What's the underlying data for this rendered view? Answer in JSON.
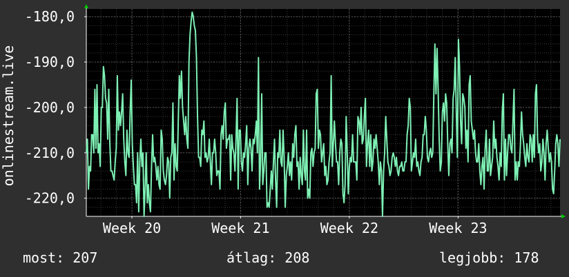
{
  "colors": {
    "background": "#2f2f2f",
    "plot_background": "#000000",
    "grid_minor": "#3a3a3a",
    "grid_major": "#555555",
    "axis": "#ffffff",
    "axis_arrow": "#00cc00",
    "line": "#7ef0b4",
    "text": "#ffffff"
  },
  "chart_data": {
    "type": "line",
    "title": "",
    "ylabel": "onlinestream.live",
    "xlabel": "",
    "ylim": [
      -224,
      -178.3
    ],
    "xlim": [
      0,
      1
    ],
    "y_ticks": [
      -180,
      -190,
      -200,
      -210,
      -220
    ],
    "y_tick_labels": [
      "-180,0",
      "-190,0",
      "-200,0",
      "-210,0",
      "-220,0"
    ],
    "x_ticks": [
      {
        "label": "Week 20",
        "x": 0.0963
      },
      {
        "label": "Week 21",
        "x": 0.3256
      },
      {
        "label": "Week 22",
        "x": 0.5552
      },
      {
        "label": "Week 23",
        "x": 0.7849
      }
    ],
    "grid": true,
    "series": [
      {
        "values": [
          -210,
          -207,
          -218,
          -213,
          -214,
          -206,
          -206,
          -210,
          -196,
          -209,
          -195,
          -210,
          -208,
          -213,
          -200,
          -200,
          -191,
          -193,
          -198,
          -199,
          -207,
          -196,
          -208,
          -214,
          -214,
          -215,
          -216,
          -212,
          -209,
          -193,
          -205,
          -201,
          -204,
          -201,
          -197,
          -207,
          -212,
          -215,
          -205,
          -210,
          -211,
          -201,
          -194,
          -208,
          -213,
          -217,
          -217,
          -221,
          -210,
          -223,
          -212,
          -207,
          -213,
          -210,
          -224,
          -218,
          -210,
          -221,
          -217,
          -221,
          -223,
          -213,
          -206,
          -212,
          -211,
          -213,
          -216,
          -213,
          -217,
          -218,
          -205,
          -207,
          -214,
          -216,
          -217,
          -215,
          -211,
          -212,
          -220,
          -211,
          -210,
          -199,
          -216,
          -208,
          -213,
          -214,
          -203,
          -193,
          -198,
          -192,
          -200,
          -203,
          -206,
          -202,
          -207,
          -209,
          -190,
          -184,
          -181,
          -179,
          -180,
          -182,
          -183,
          -189,
          -202,
          -211,
          -211,
          -213,
          -205,
          -206,
          -203,
          -211,
          -210,
          -212,
          -211,
          -207,
          -212,
          -217,
          -210,
          -210,
          -207,
          -210,
          -215,
          -214,
          -214,
          -218,
          -206,
          -204,
          -207,
          -201,
          -199,
          -209,
          -207,
          -207,
          -206,
          -216,
          -206,
          -209,
          -210,
          -214,
          -207,
          -198,
          -218,
          -205,
          -205,
          -212,
          -214,
          -210,
          -211,
          -208,
          -204,
          -217,
          -209,
          -207,
          -209,
          -214,
          -207,
          -208,
          -206,
          -203,
          -210,
          -189,
          -218,
          -212,
          -197,
          -217,
          -214,
          -210,
          -210,
          -222,
          -221,
          -222,
          -218,
          -214,
          -218,
          -212,
          -207,
          -216,
          -222,
          -210,
          -211,
          -205,
          -212,
          -213,
          -205,
          -211,
          -222,
          -215,
          -213,
          -210,
          -215,
          -212,
          -216,
          -208,
          -211,
          -206,
          -204,
          -213,
          -212,
          -218,
          -211,
          -215,
          -217,
          -205,
          -214,
          -216,
          -205,
          -220,
          -218,
          -220,
          -210,
          -209,
          -213,
          -210,
          -209,
          -197,
          -196,
          -209,
          -205,
          -206,
          -212,
          -210,
          -208,
          -215,
          -213,
          -217,
          -216,
          -212,
          -210,
          -193,
          -213,
          -208,
          -203,
          -208,
          -212,
          -212,
          -217,
          -210,
          -207,
          -208,
          -219,
          -221,
          -217,
          -202,
          -210,
          -219,
          -213,
          -211,
          -212,
          -206,
          -212,
          -212,
          -212,
          -216,
          -202,
          -203,
          -206,
          -200,
          -208,
          -207,
          -202,
          -198,
          -213,
          -208,
          -205,
          -213,
          -206,
          -214,
          -212,
          -207,
          -209,
          -206,
          -209,
          -212,
          -217,
          -212,
          -214,
          -224,
          -214,
          -210,
          -202,
          -207,
          -212,
          -213,
          -215,
          -214,
          -211,
          -210,
          -211,
          -213,
          -211,
          -214,
          -215,
          -213,
          -213,
          -212,
          -214,
          -214,
          -212,
          -212,
          -206,
          -204,
          -198,
          -200,
          -214,
          -212,
          -210,
          -211,
          -207,
          -213,
          -212,
          -214,
          -215,
          -212,
          -211,
          -206,
          -206,
          -202,
          -205,
          -211,
          -212,
          -210,
          -209,
          -211,
          -210,
          -197,
          -186,
          -197,
          -187,
          -196,
          -207,
          -214,
          -212,
          -201,
          -199,
          -203,
          -197,
          -199,
          -208,
          -215,
          -208,
          -207,
          -210,
          -198,
          -196,
          -189,
          -201,
          -211,
          -185,
          -191,
          -203,
          -208,
          -197,
          -198,
          -200,
          -209,
          -205,
          -212,
          -195,
          -193,
          -203,
          -205,
          -207,
          -205,
          -210,
          -212,
          -212,
          -208,
          -214,
          -217,
          -213,
          -211,
          -218,
          -209,
          -205,
          -214,
          -214,
          -207,
          -215,
          -213,
          -211,
          -203,
          -209,
          -207,
          -211,
          -213,
          -216,
          -210,
          -213,
          -201,
          -197,
          -216,
          -207,
          -215,
          -210,
          -206,
          -206,
          -209,
          -210,
          -203,
          -196,
          -216,
          -212,
          -216,
          -212,
          -213,
          -208,
          -201,
          -206,
          -208,
          -211,
          -213,
          -208,
          -211,
          -212,
          -206,
          -207,
          -212,
          -206,
          -211,
          -197,
          -195,
          -207,
          -210,
          -208,
          -214,
          -212,
          -207,
          -210,
          -216,
          -208,
          -205,
          -209,
          -212,
          -210,
          -212,
          -218,
          -219,
          -214,
          -208,
          -206,
          -208,
          -213,
          -207
        ]
      }
    ]
  },
  "stats": {
    "current": "most: 207",
    "average": "átlag: 208",
    "best": "legjobb: 178"
  }
}
